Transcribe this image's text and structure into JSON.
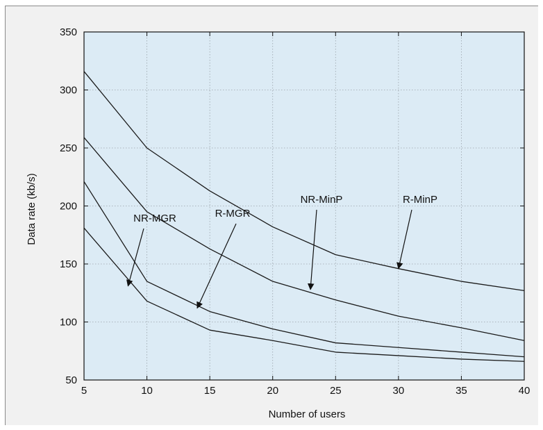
{
  "chart_data": {
    "type": "line",
    "title": "",
    "xlabel": "Number of users",
    "ylabel": "Data rate (kb/s)",
    "xlim": [
      5,
      40
    ],
    "ylim": [
      50,
      350
    ],
    "xticks": [
      5,
      10,
      15,
      20,
      25,
      30,
      35,
      40
    ],
    "yticks": [
      50,
      100,
      150,
      200,
      250,
      300,
      350
    ],
    "grid": true,
    "colors": {
      "plot_bg": "#dcebf5",
      "frame_bg": "#f1f1f1",
      "line": "#1a1a1a",
      "grid": "#9aa3aa"
    },
    "x": [
      5,
      10,
      15,
      20,
      25,
      30,
      35,
      40
    ],
    "series": [
      {
        "name": "R-MinP",
        "values": [
          316,
          250,
          213,
          182,
          158,
          146,
          135,
          127
        ]
      },
      {
        "name": "NR-MinP",
        "values": [
          259,
          195,
          163,
          135,
          119,
          105,
          95,
          84
        ]
      },
      {
        "name": "R-MGR",
        "values": [
          221,
          135,
          109,
          94,
          82,
          78,
          74,
          70
        ]
      },
      {
        "name": "NR-MGR",
        "values": [
          181,
          118,
          93,
          84,
          74,
          71,
          68,
          66
        ]
      }
    ],
    "annotations": [
      {
        "text": "R-MinP",
        "series": "R-MinP",
        "arrow_to": [
          30,
          146
        ]
      },
      {
        "text": "NR-MinP",
        "series": "NR-MinP",
        "arrow_to": [
          23,
          128
        ]
      },
      {
        "text": "R-MGR",
        "series": "R-MGR",
        "arrow_to": [
          14,
          112
        ]
      },
      {
        "text": "NR-MGR",
        "series": "NR-MGR",
        "arrow_to": [
          8.5,
          131
        ]
      }
    ]
  }
}
